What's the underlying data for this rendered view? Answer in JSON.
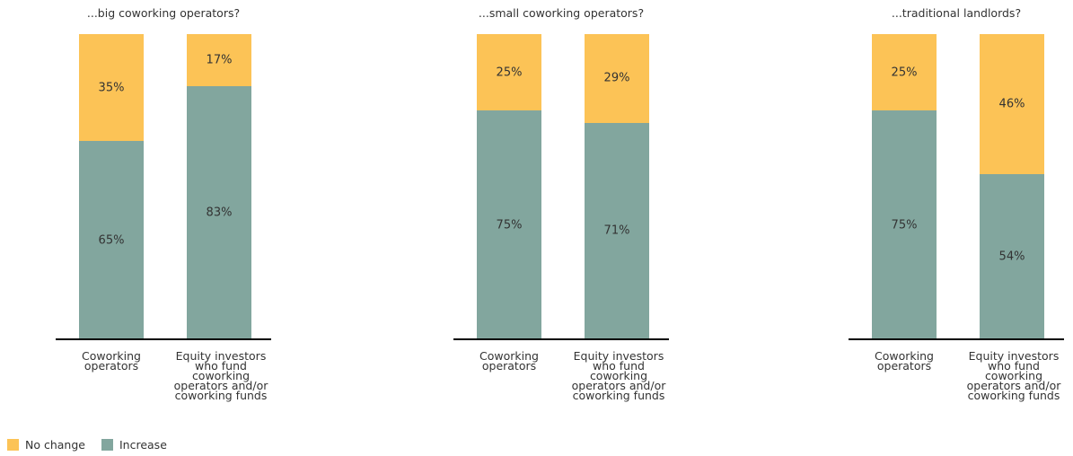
{
  "colors": {
    "no_change": "#fcc356",
    "increase": "#82a69e"
  },
  "chart_data": [
    {
      "type": "bar",
      "stacked": true,
      "title": "...big coworking operators?",
      "categories": [
        "Coworking operators",
        "Equity investors who fund coworking operators and/or coworking funds"
      ],
      "category_lines": [
        [
          "Coworking",
          "operators"
        ],
        [
          "Equity investors",
          "who fund",
          "coworking",
          "operators and/or",
          "coworking funds"
        ]
      ],
      "series": [
        {
          "name": "Increase",
          "values": [
            65,
            83
          ],
          "labels": [
            "65%",
            "83%"
          ]
        },
        {
          "name": "No change",
          "values": [
            35,
            17
          ],
          "labels": [
            "35%",
            "17%"
          ]
        }
      ],
      "ylim": [
        0,
        100
      ]
    },
    {
      "type": "bar",
      "stacked": true,
      "title": "...small coworking operators?",
      "categories": [
        "Coworking operators",
        "Equity investors who fund coworking operators and/or coworking funds"
      ],
      "category_lines": [
        [
          "Coworking",
          "operators"
        ],
        [
          "Equity investors",
          "who fund",
          "coworking",
          "operators and/or",
          "coworking funds"
        ]
      ],
      "series": [
        {
          "name": "Increase",
          "values": [
            75,
            71
          ],
          "labels": [
            "75%",
            "71%"
          ]
        },
        {
          "name": "No change",
          "values": [
            25,
            29
          ],
          "labels": [
            "25%",
            "29%"
          ]
        }
      ],
      "ylim": [
        0,
        100
      ]
    },
    {
      "type": "bar",
      "stacked": true,
      "title": "...traditional landlords?",
      "categories": [
        "Coworking operators",
        "Equity investors who fund coworking operators and/or coworking funds"
      ],
      "category_lines": [
        [
          "Coworking",
          "operators"
        ],
        [
          "Equity investors",
          "who fund",
          "coworking",
          "operators and/or",
          "coworking funds"
        ]
      ],
      "series": [
        {
          "name": "Increase",
          "values": [
            75,
            54
          ],
          "labels": [
            "75%",
            "54%"
          ]
        },
        {
          "name": "No change",
          "values": [
            25,
            46
          ],
          "labels": [
            "25%",
            "46%"
          ]
        }
      ],
      "ylim": [
        0,
        100
      ]
    }
  ],
  "legend": [
    {
      "label": "No change",
      "color_key": "no_change"
    },
    {
      "label": "Increase",
      "color_key": "increase"
    }
  ]
}
